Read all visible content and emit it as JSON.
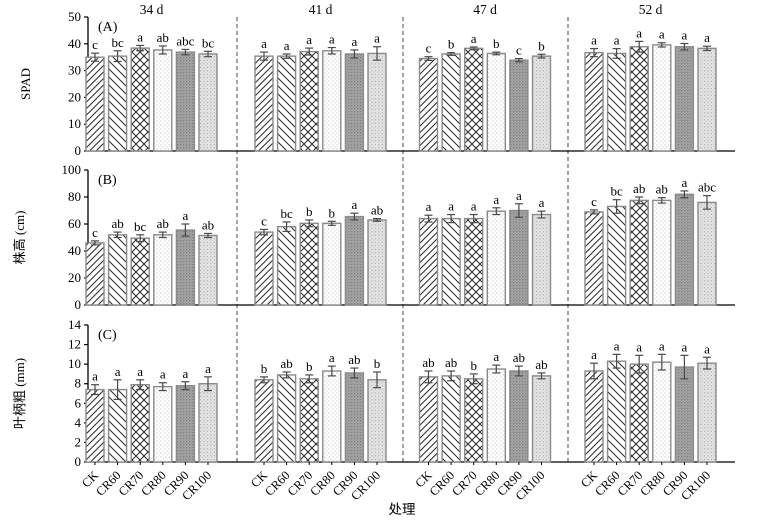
{
  "figure": {
    "xlabel": "处理",
    "group_headers": [
      "34 d",
      "41 d",
      "47 d",
      "52 d"
    ],
    "categories": [
      "CK",
      "CR60",
      "CR70",
      "CR80",
      "CR90",
      "CR100"
    ],
    "bar_styles": {
      "CK": "diagonal-up-hatch",
      "CR60": "diagonal-down-hatch",
      "CR70": "crosshatch",
      "CR80": "stipple-white",
      "CR90": "stipple-dark-gray",
      "CR100": "stipple-light-gray"
    },
    "colors": {
      "bar_outline": "#8a8a8a",
      "hatch_line": "#2a2a2a",
      "stipple_white_bg": "#ffffff",
      "stipple_dark_bg": "#a6a6a6",
      "stipple_light_bg": "#e3e3e3",
      "error_bar": "#4a4a4a",
      "separator": "#8c8c8c",
      "axis": "#000000"
    }
  },
  "chart_data": [
    {
      "type": "bar",
      "panel_label": "(A)",
      "ylabel": "SPAD",
      "ylim": [
        0,
        50
      ],
      "yticks": [
        0,
        10,
        20,
        30,
        40,
        50
      ],
      "categories": [
        "CK",
        "CR60",
        "CR70",
        "CR80",
        "CR90",
        "CR100"
      ],
      "groups": [
        {
          "label": "34 d",
          "values": [
            35.0,
            35.4,
            38.4,
            37.7,
            36.9,
            36.2
          ],
          "errors": [
            1.5,
            2.0,
            1.0,
            1.5,
            1.0,
            1.0
          ],
          "letters": [
            "c",
            "bc",
            "a",
            "ab",
            "abc",
            "bc"
          ]
        },
        {
          "label": "41 d",
          "values": [
            35.4,
            35.4,
            37.1,
            37.4,
            36.2,
            36.4
          ],
          "errors": [
            1.5,
            0.8,
            1.3,
            1.2,
            1.5,
            2.5
          ],
          "letters": [
            "a",
            "a",
            "a",
            "a",
            "a",
            "a"
          ]
        },
        {
          "label": "47 d",
          "values": [
            34.5,
            36.2,
            38.3,
            36.4,
            33.9,
            35.4
          ],
          "errors": [
            0.7,
            0.5,
            0.5,
            0.5,
            0.6,
            0.7
          ],
          "letters": [
            "c",
            "b",
            "a",
            "b",
            "c",
            "b"
          ]
        },
        {
          "label": "52 d",
          "values": [
            36.7,
            36.4,
            38.9,
            39.6,
            38.9,
            38.3
          ],
          "errors": [
            1.5,
            1.8,
            2.0,
            0.8,
            1.2,
            0.8
          ],
          "letters": [
            "a",
            "a",
            "a",
            "a",
            "a",
            "a"
          ]
        }
      ]
    },
    {
      "type": "bar",
      "panel_label": "(B)",
      "ylabel": "株高 (cm)",
      "ylim": [
        0,
        100
      ],
      "yticks": [
        0,
        20,
        40,
        60,
        80,
        100
      ],
      "categories": [
        "CK",
        "CR60",
        "CR70",
        "CR80",
        "CR90",
        "CR100"
      ],
      "groups": [
        {
          "label": "34 d",
          "values": [
            46.0,
            52.0,
            49.5,
            52.0,
            55.5,
            51.5
          ],
          "errors": [
            1.5,
            2.0,
            2.5,
            2.0,
            4.5,
            1.5
          ],
          "letters": [
            "c",
            "ab",
            "bc",
            "ab",
            "a",
            "ab"
          ]
        },
        {
          "label": "41 d",
          "values": [
            54.0,
            58.0,
            60.5,
            60.5,
            65.5,
            63.0
          ],
          "errors": [
            2.0,
            3.5,
            2.5,
            1.5,
            2.5,
            1.0
          ],
          "letters": [
            "c",
            "bc",
            "b",
            "b",
            "a",
            "ab"
          ]
        },
        {
          "label": "47 d",
          "values": [
            64.0,
            64.0,
            64.0,
            69.5,
            70.0,
            67.0
          ],
          "errors": [
            2.5,
            3.0,
            3.0,
            2.5,
            5.0,
            2.5
          ],
          "letters": [
            "a",
            "a",
            "a",
            "a",
            "a",
            "a"
          ]
        },
        {
          "label": "52 d",
          "values": [
            69.0,
            73.0,
            77.5,
            77.5,
            82.0,
            76.0
          ],
          "errors": [
            1.5,
            5.0,
            2.5,
            2.0,
            2.5,
            5.0
          ],
          "letters": [
            "c",
            "bc",
            "ab",
            "ab",
            "a",
            "abc"
          ]
        }
      ]
    },
    {
      "type": "bar",
      "panel_label": "(C)",
      "ylabel": "叶柄粗 (mm)",
      "ylim": [
        0,
        14
      ],
      "yticks": [
        0,
        2,
        4,
        6,
        8,
        10,
        12,
        14
      ],
      "categories": [
        "CK",
        "CR60",
        "CR70",
        "CR80",
        "CR90",
        "CR100"
      ],
      "groups": [
        {
          "label": "34 d",
          "values": [
            7.4,
            7.4,
            7.9,
            7.7,
            7.8,
            8.0
          ],
          "errors": [
            0.5,
            1.0,
            0.5,
            0.4,
            0.4,
            0.7
          ],
          "letters": [
            "a",
            "a",
            "a",
            "a",
            "a",
            "a"
          ]
        },
        {
          "label": "41 d",
          "values": [
            8.4,
            8.9,
            8.5,
            9.3,
            9.1,
            8.4
          ],
          "errors": [
            0.3,
            0.3,
            0.4,
            0.5,
            0.5,
            0.8
          ],
          "letters": [
            "b",
            "ab",
            "b",
            "a",
            "ab",
            "b"
          ]
        },
        {
          "label": "47 d",
          "values": [
            8.7,
            8.8,
            8.5,
            9.5,
            9.3,
            8.8
          ],
          "errors": [
            0.6,
            0.5,
            0.5,
            0.4,
            0.5,
            0.3
          ],
          "letters": [
            "ab",
            "ab",
            "b",
            "a",
            "ab",
            "ab"
          ]
        },
        {
          "label": "52 d",
          "values": [
            9.3,
            10.3,
            10.0,
            10.2,
            9.7,
            10.1
          ],
          "errors": [
            0.8,
            0.7,
            0.9,
            0.8,
            1.2,
            0.6
          ],
          "letters": [
            "a",
            "a",
            "a",
            "a",
            "a",
            "a"
          ]
        }
      ]
    }
  ]
}
